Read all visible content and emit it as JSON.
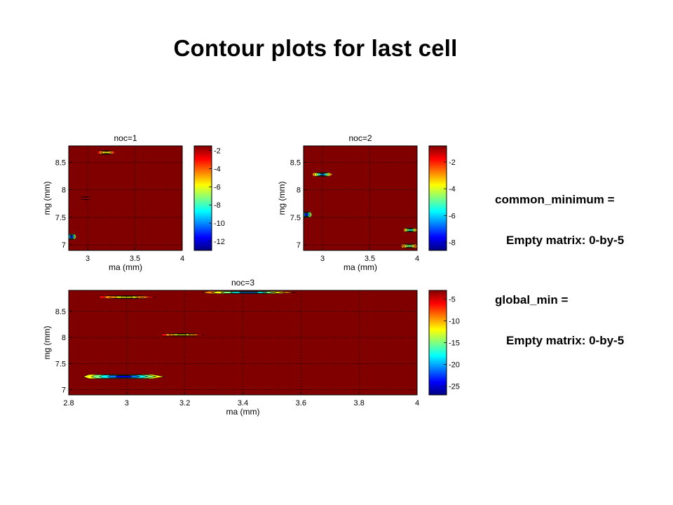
{
  "slide": {
    "title": "Contour plots for last cell",
    "output": [
      {
        "label": "common_minimum =",
        "value": "Empty matrix: 0-by-5"
      },
      {
        "label": "global_min =",
        "value": "Empty matrix: 0-by-5"
      }
    ]
  },
  "colors": {
    "background_field": "#800000",
    "colormap": [
      "#00008f",
      "#0000ff",
      "#0080ff",
      "#00ffff",
      "#80ff80",
      "#ffff00",
      "#ff8000",
      "#ff0000",
      "#800000"
    ]
  },
  "chart_data": [
    {
      "type": "contour",
      "title": "noc=1",
      "xlabel": "ma (mm)",
      "ylabel": "mg (mm)",
      "xlim": [
        2.8,
        4
      ],
      "ylim": [
        6.9,
        8.8
      ],
      "xticks": [
        3,
        3.5,
        4
      ],
      "yticks": [
        7,
        7.5,
        8,
        8.5
      ],
      "grid": true,
      "colorbar": {
        "ticks": [
          -2,
          -4,
          -6,
          -8,
          -10,
          -12
        ],
        "range": [
          -13,
          -1.5
        ]
      },
      "features": [
        {
          "x": 3.2,
          "y": 8.68,
          "value": -6,
          "wx": 0.2,
          "wy": 0.07
        },
        {
          "x": 2.98,
          "y": 7.85,
          "value": -3,
          "wx": 0.1,
          "wy": 0.05
        },
        {
          "x": 2.83,
          "y": 7.15,
          "value": -12,
          "wx": 0.1,
          "wy": 0.1
        }
      ]
    },
    {
      "type": "contour",
      "title": "noc=2",
      "xlabel": "ma (mm)",
      "ylabel": "mg (mm)",
      "xlim": [
        2.8,
        4
      ],
      "ylim": [
        6.9,
        8.8
      ],
      "xticks": [
        3,
        3.5,
        4
      ],
      "yticks": [
        7,
        7.5,
        8,
        8.5
      ],
      "grid": true,
      "colorbar": {
        "ticks": [
          -2,
          -4,
          -6,
          -8
        ],
        "range": [
          -8.6,
          -0.8
        ]
      },
      "features": [
        {
          "x": 3.0,
          "y": 8.28,
          "value": -7,
          "wx": 0.22,
          "wy": 0.07
        },
        {
          "x": 2.83,
          "y": 7.55,
          "value": -8,
          "wx": 0.12,
          "wy": 0.1
        },
        {
          "x": 3.93,
          "y": 7.27,
          "value": -6,
          "wx": 0.15,
          "wy": 0.07
        },
        {
          "x": 3.92,
          "y": 6.98,
          "value": -5,
          "wx": 0.18,
          "wy": 0.08
        }
      ]
    },
    {
      "type": "contour",
      "title": "noc=3",
      "xlabel": "ma (mm)",
      "ylabel": "mg (mm)",
      "xlim": [
        2.8,
        4
      ],
      "ylim": [
        6.9,
        8.9
      ],
      "xticks": [
        2.8,
        3,
        3.2,
        3.4,
        3.6,
        3.8,
        4
      ],
      "yticks": [
        7,
        7.5,
        8,
        8.5
      ],
      "grid": true,
      "colorbar": {
        "ticks": [
          -5,
          -10,
          -15,
          -20,
          -25
        ],
        "range": [
          -27,
          -3
        ]
      },
      "features": [
        {
          "x": 3.0,
          "y": 8.77,
          "value": -13,
          "wx": 0.2,
          "wy": 0.06
        },
        {
          "x": 3.42,
          "y": 8.86,
          "value": -20,
          "wx": 0.32,
          "wy": 0.05
        },
        {
          "x": 3.19,
          "y": 8.05,
          "value": -12,
          "wx": 0.15,
          "wy": 0.05
        },
        {
          "x": 2.99,
          "y": 7.25,
          "value": -25,
          "wx": 0.28,
          "wy": 0.08
        }
      ]
    }
  ]
}
